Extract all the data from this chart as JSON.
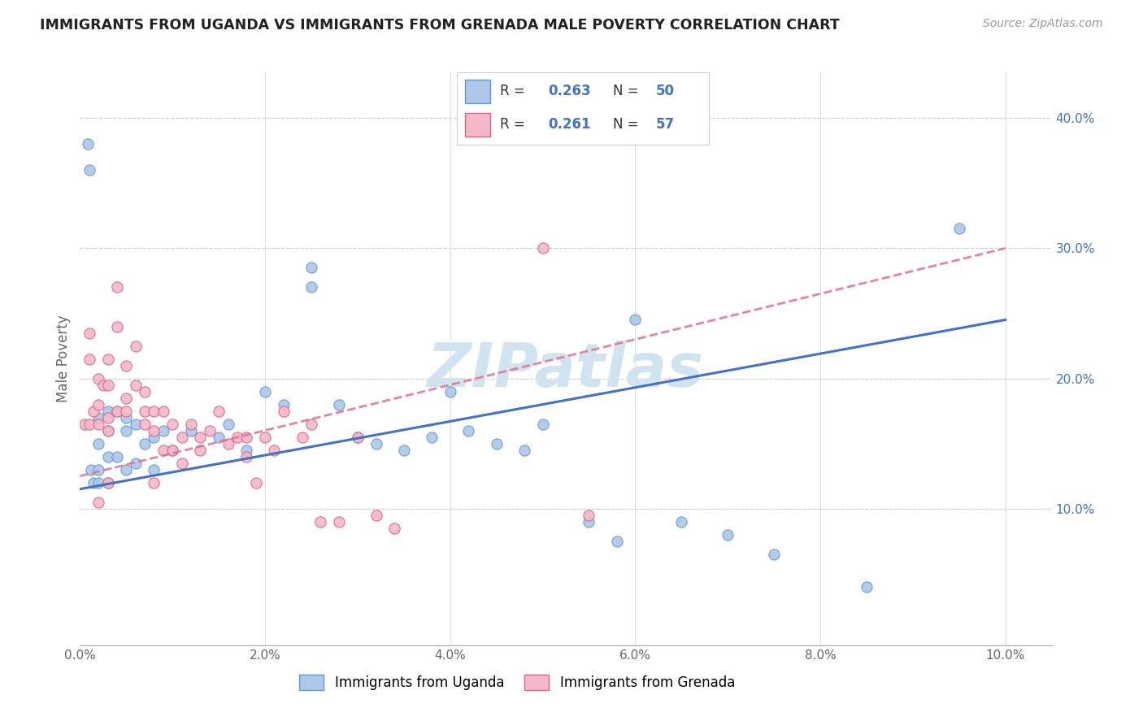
{
  "title": "IMMIGRANTS FROM UGANDA VS IMMIGRANTS FROM GRENADA MALE POVERTY CORRELATION CHART",
  "source": "Source: ZipAtlas.com",
  "ylabel": "Male Poverty",
  "xlim": [
    0.0,
    0.105
  ],
  "ylim": [
    -0.005,
    0.435
  ],
  "xtick_labels": [
    "0.0%",
    "2.0%",
    "4.0%",
    "6.0%",
    "8.0%",
    "10.0%"
  ],
  "xtick_vals": [
    0.0,
    0.02,
    0.04,
    0.06,
    0.08,
    0.1
  ],
  "ytick_labels": [
    "10.0%",
    "20.0%",
    "30.0%",
    "40.0%"
  ],
  "ytick_vals": [
    0.1,
    0.2,
    0.3,
    0.4
  ],
  "uganda_color": "#aec6e8",
  "grenada_color": "#f4b8c8",
  "uganda_edge_color": "#5b9bd5",
  "grenada_edge_color": "#e06080",
  "uganda_line_color": "#4472c4",
  "grenada_line_color": "#e07090",
  "watermark_text": "ZIPatlas",
  "watermark_color": "#d0e4f0",
  "legend_label1": "Immigrants from Uganda",
  "legend_label2": "Immigrants from Grenada",
  "uganda_R": "0.263",
  "uganda_N": "50",
  "grenada_R": "0.261",
  "grenada_N": "57",
  "uganda_x": [
    0.0008,
    0.001,
    0.0012,
    0.0015,
    0.002,
    0.002,
    0.002,
    0.002,
    0.003,
    0.003,
    0.003,
    0.003,
    0.004,
    0.004,
    0.005,
    0.005,
    0.005,
    0.006,
    0.006,
    0.007,
    0.008,
    0.008,
    0.009,
    0.01,
    0.012,
    0.015,
    0.016,
    0.018,
    0.02,
    0.022,
    0.025,
    0.025,
    0.028,
    0.03,
    0.032,
    0.035,
    0.038,
    0.04,
    0.042,
    0.045,
    0.048,
    0.05,
    0.055,
    0.058,
    0.06,
    0.065,
    0.07,
    0.075,
    0.085,
    0.095
  ],
  "uganda_y": [
    0.38,
    0.36,
    0.13,
    0.12,
    0.17,
    0.15,
    0.13,
    0.12,
    0.175,
    0.16,
    0.14,
    0.12,
    0.175,
    0.14,
    0.17,
    0.16,
    0.13,
    0.165,
    0.135,
    0.15,
    0.155,
    0.13,
    0.16,
    0.145,
    0.16,
    0.155,
    0.165,
    0.145,
    0.19,
    0.18,
    0.285,
    0.27,
    0.18,
    0.155,
    0.15,
    0.145,
    0.155,
    0.19,
    0.16,
    0.15,
    0.145,
    0.165,
    0.09,
    0.075,
    0.245,
    0.09,
    0.08,
    0.065,
    0.04,
    0.315
  ],
  "grenada_x": [
    0.0005,
    0.001,
    0.001,
    0.001,
    0.0015,
    0.002,
    0.002,
    0.002,
    0.002,
    0.0025,
    0.003,
    0.003,
    0.003,
    0.003,
    0.003,
    0.004,
    0.004,
    0.004,
    0.005,
    0.005,
    0.005,
    0.006,
    0.006,
    0.007,
    0.007,
    0.007,
    0.008,
    0.008,
    0.008,
    0.009,
    0.009,
    0.01,
    0.01,
    0.011,
    0.011,
    0.012,
    0.013,
    0.013,
    0.014,
    0.015,
    0.016,
    0.017,
    0.018,
    0.018,
    0.019,
    0.02,
    0.021,
    0.022,
    0.024,
    0.025,
    0.026,
    0.028,
    0.03,
    0.032,
    0.034,
    0.05,
    0.055
  ],
  "grenada_y": [
    0.165,
    0.235,
    0.215,
    0.165,
    0.175,
    0.2,
    0.18,
    0.165,
    0.105,
    0.195,
    0.215,
    0.195,
    0.17,
    0.16,
    0.12,
    0.27,
    0.24,
    0.175,
    0.21,
    0.185,
    0.175,
    0.225,
    0.195,
    0.19,
    0.175,
    0.165,
    0.175,
    0.16,
    0.12,
    0.175,
    0.145,
    0.165,
    0.145,
    0.155,
    0.135,
    0.165,
    0.155,
    0.145,
    0.16,
    0.175,
    0.15,
    0.155,
    0.155,
    0.14,
    0.12,
    0.155,
    0.145,
    0.175,
    0.155,
    0.165,
    0.09,
    0.09,
    0.155,
    0.095,
    0.085,
    0.3,
    0.095
  ]
}
